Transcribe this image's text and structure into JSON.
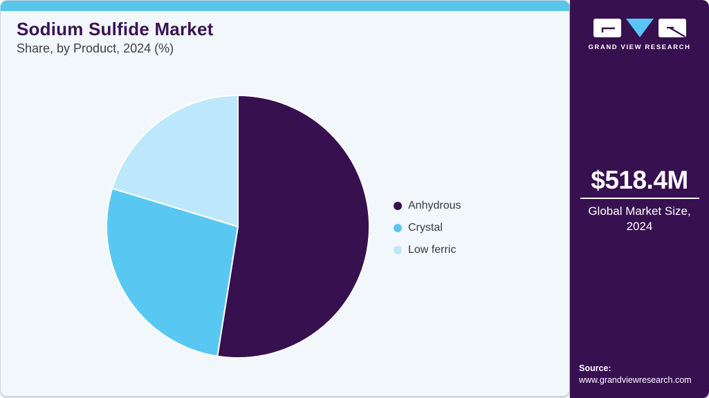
{
  "header": {
    "title": "Sodium Sulfide Market",
    "subtitle": "Share, by Product, 2024 (%)"
  },
  "chart_data": {
    "type": "pie",
    "title": "Sodium Sulfide Market Share, by Product, 2024 (%)",
    "labels": [
      "Anhydrous",
      "Crystal",
      "Low ferric"
    ],
    "values": [
      52.5,
      27.2,
      20.3
    ],
    "unit": "%",
    "colors": [
      "#371050",
      "#58C8F3",
      "#BDE8FB"
    ],
    "start_angle_deg": 0,
    "direction": "clockwise",
    "legend_position": "right",
    "slice_border_color": "#FFFFFF"
  },
  "sidebar": {
    "logo": {
      "brand": "GRAND VIEW RESEARCH",
      "icon": "gvr-logo"
    },
    "market_size_value": "$518.4M",
    "market_size_label": "Global Market Size, 2024",
    "source_label": "Source:",
    "source_url": "www.grandviewresearch.com"
  },
  "theme": {
    "accent_bar": "#5CC5EC",
    "card_background": "#F2F7FB",
    "card_border": "#C9D4DC",
    "sidebar_background": "#371050",
    "title_color": "#3A1254",
    "subtitle_color": "#3E3E48",
    "legend_text_color": "#393943",
    "sidebar_text_color": "#FFFFFF",
    "logo_triangle_color": "#56C7F2"
  }
}
